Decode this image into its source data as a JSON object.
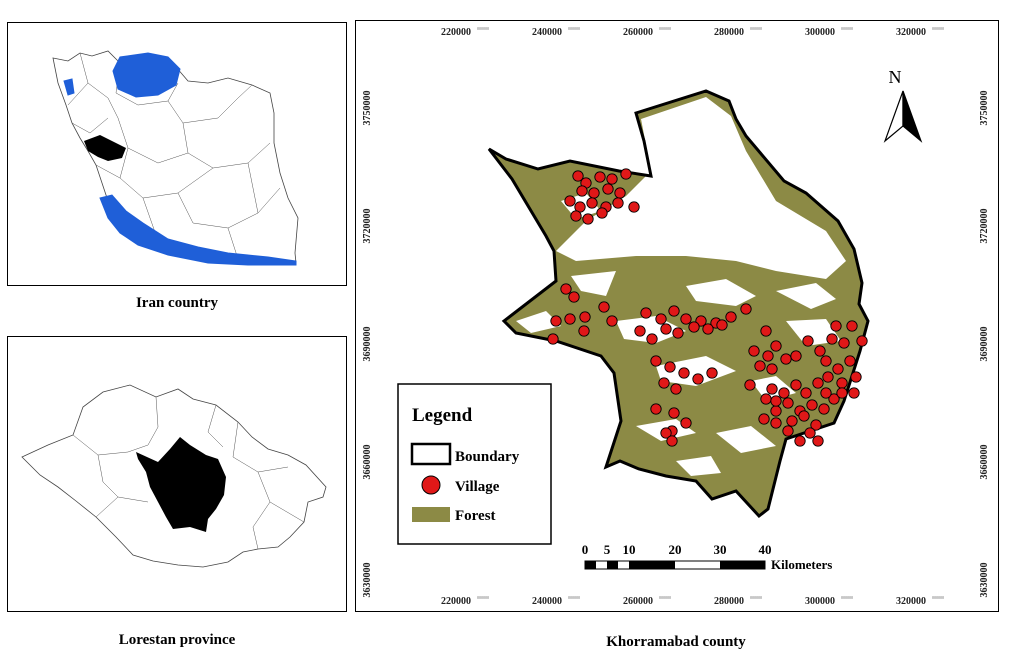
{
  "colors": {
    "province_fill": "#1f5fd8",
    "study_area": "#000000",
    "forest": "#8c8a45",
    "village": "#e01818",
    "boundary": "#000000"
  },
  "iran_panel": {
    "caption": "Iran country"
  },
  "lorestan_panel": {
    "caption": "Lorestan province"
  },
  "main_map": {
    "caption": "Khorramabad county",
    "north_label": "N",
    "x_ticks": [
      {
        "label": "220000",
        "sup": "000000"
      },
      {
        "label": "240000",
        "sup": "000000"
      },
      {
        "label": "260000",
        "sup": "000000"
      },
      {
        "label": "280000",
        "sup": "000000"
      },
      {
        "label": "300000",
        "sup": "000000"
      },
      {
        "label": "320000",
        "sup": "000000"
      }
    ],
    "y_ticks": [
      {
        "label": "3750000",
        "sup": "000000"
      },
      {
        "label": "3720000",
        "sup": "000000"
      },
      {
        "label": "3690000",
        "sup": "000000"
      },
      {
        "label": "3660000",
        "sup": "000000"
      },
      {
        "label": "3630000",
        "sup": "000000"
      }
    ],
    "legend": {
      "title": "Legend",
      "items": [
        {
          "label": "Boundary",
          "symbol": "boundary"
        },
        {
          "label": "Village",
          "symbol": "village"
        },
        {
          "label": "Forest",
          "symbol": "forest"
        }
      ]
    },
    "scale_bar": {
      "numbers": [
        "0",
        "5",
        "10",
        "20",
        "30",
        "40"
      ],
      "unit": "Kilometers"
    }
  }
}
